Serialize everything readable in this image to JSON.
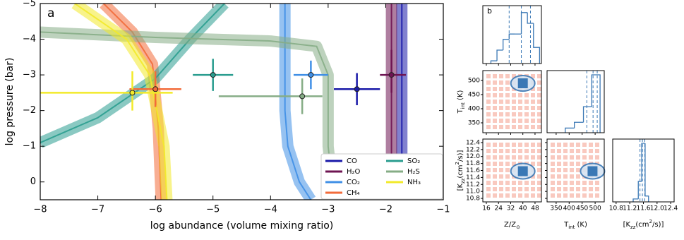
{
  "chart_data": [
    {
      "type": "line",
      "label": "a",
      "x_label": "log abundance (volume mixing ratio)",
      "y_label": "log pressure (bar)",
      "xlim": [
        -8,
        -1
      ],
      "ylim": [
        0.5,
        -5
      ],
      "xticks": [
        {
          "value": -8,
          "label": "−8"
        },
        {
          "value": -7,
          "label": "−7"
        },
        {
          "value": -6,
          "label": "−6"
        },
        {
          "value": -5,
          "label": "−5"
        },
        {
          "value": -4,
          "label": "−4"
        },
        {
          "value": -3,
          "label": "−3"
        },
        {
          "value": -2,
          "label": "−2"
        },
        {
          "value": -1,
          "label": "−1"
        }
      ],
      "yticks": [
        {
          "value": -5,
          "label": "−5"
        },
        {
          "value": -4,
          "label": "−4"
        },
        {
          "value": -3,
          "label": "−3"
        },
        {
          "value": -2,
          "label": "−2"
        },
        {
          "value": -1,
          "label": "−1"
        },
        0
      ],
      "legend": "lower right",
      "series": [
        {
          "name": "CO",
          "color": "#1a1aa8",
          "profile": {
            "x": [
              -1.72,
              -1.72
            ],
            "y": [
              -5,
              0.5
            ]
          },
          "point": {
            "x": -2.5,
            "y": -2.6,
            "xerr": [
              0.4,
              0.4
            ],
            "yerr": [
              0.45,
              0.45
            ]
          }
        },
        {
          "name": "H₂O",
          "color": "#6e1452",
          "profile": {
            "x": [
              -1.9,
              -1.9
            ],
            "y": [
              -5,
              0.5
            ]
          },
          "point": {
            "x": -1.9,
            "y": -3.0,
            "xerr": [
              0.2,
              0.25
            ],
            "yerr": [
              0.7,
              0.5
            ]
          }
        },
        {
          "name": "CO₂",
          "color": "#3f8fe6",
          "profile": {
            "x": [
              -3.75,
              -3.75,
              -3.7,
              -3.5,
              -3.3
            ],
            "y": [
              -5,
              -2,
              -1,
              0,
              0.5
            ]
          },
          "point": {
            "x": -3.3,
            "y": -3.0,
            "xerr": [
              0.3,
              0.3
            ],
            "yerr": [
              0.4,
              0.4
            ]
          }
        },
        {
          "name": "CH₄",
          "color": "#f26b3a",
          "profile": {
            "x": [
              -6.9,
              -6.4,
              -6.05,
              -5.95,
              -5.9
            ],
            "y": [
              -5,
              -4.2,
              -3.3,
              -1.5,
              0.5
            ]
          },
          "point": {
            "x": -6.0,
            "y": -2.6,
            "xerr": [
              0.45,
              0.45
            ],
            "yerr": [
              0.5,
              0.5
            ]
          }
        },
        {
          "name": "SO₂",
          "color": "#2a9d8f",
          "profile": {
            "x": [
              -8,
              -7,
              -6,
              -5.4,
              -4.8
            ],
            "y": [
              -1.1,
              -1.8,
              -2.9,
              -4,
              -5
            ]
          },
          "point": {
            "x": -5.0,
            "y": -3.0,
            "xerr": [
              0.35,
              0.35
            ],
            "yerr": [
              0.45,
              0.45
            ]
          }
        },
        {
          "name": "H₂S",
          "color": "#86ad86",
          "profile": {
            "x": [
              -8,
              -6,
              -4,
              -3.2,
              -3,
              -3,
              -2.9
            ],
            "y": [
              -4.2,
              -4.05,
              -3.95,
              -3.8,
              -3,
              -1,
              0.5
            ]
          },
          "point": {
            "x": -3.45,
            "y": -2.4,
            "xerr": [
              1.45,
              0.35
            ],
            "yerr": [
              0.5,
              0.5
            ]
          }
        },
        {
          "name": "NH₃",
          "color": "#f2ea2a",
          "profile": {
            "x": [
              -7.4,
              -6.5,
              -6.1,
              -5.85,
              -5.8
            ],
            "y": [
              -5,
              -4,
              -3,
              -1,
              0.5
            ]
          },
          "point": {
            "x": -6.4,
            "y": -2.5,
            "xerr": [
              1.6,
              0.7
            ],
            "yerr": [
              0.6,
              0.5
            ]
          }
        }
      ]
    },
    {
      "type": "corner",
      "label": "b",
      "color": "#3a78b5",
      "params": [
        {
          "label_parts": [
            {
              "text": "Z/Z"
            },
            {
              "text": "⊙",
              "sub": true
            }
          ],
          "lim": [
            13.7,
            52.2
          ],
          "ticks": [
            16,
            24,
            32,
            40,
            48
          ],
          "bins": [
            19,
            23,
            27,
            31,
            35,
            39,
            43,
            47,
            51
          ],
          "counts": [
            0.05,
            0.25,
            0.45,
            0.55,
            0.55,
            0.95,
            0.75,
            0.3
          ],
          "quantiles": [
            31,
            39,
            45
          ],
          "best": 40
        },
        {
          "label_parts": [
            {
              "text": "T"
            },
            {
              "text": "int",
              "sub": true
            },
            {
              "text": " (K)"
            }
          ],
          "lim": [
            315,
            535
          ],
          "ticks": [
            350,
            400,
            450,
            500
          ],
          "bins": [
            385,
            420,
            455,
            487,
            519
          ],
          "counts": [
            0.08,
            0.18,
            0.45,
            1.0
          ],
          "quantiles": [
            468,
            492,
            508
          ],
          "best": 490
        },
        {
          "label_parts": [
            {
              "text": "[K"
            },
            {
              "text": "zz",
              "sub": true
            },
            {
              "text": "(cm"
            },
            {
              "text": "2",
              "sup": true
            },
            {
              "text": "/s)]"
            }
          ],
          "lim": [
            10.7,
            12.5
          ],
          "ticks": [
            10.8,
            11.2,
            11.6,
            {
              "value": 12,
              "label": "12.0"
            },
            12.4
          ],
          "yticks": [
            10.8,
            {
              "value": 11,
              "label": "11.0"
            },
            11.2,
            11.4,
            11.6,
            11.8,
            {
              "value": 12,
              "label": "12.0"
            },
            12.2,
            12.4
          ],
          "bins": [
            11.3,
            11.45,
            11.55,
            11.65,
            11.75
          ],
          "counts": [
            0.05,
            0.35,
            1.0,
            0.1
          ],
          "quantiles": [
            11.5,
            11.57,
            11.64
          ],
          "best": 11.58
        }
      ]
    }
  ]
}
